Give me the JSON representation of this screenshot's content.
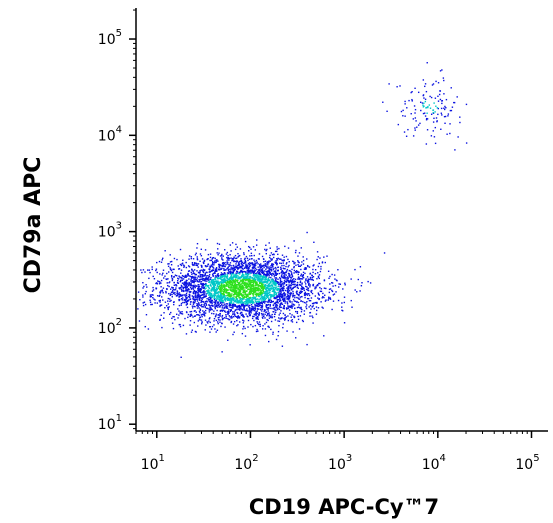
{
  "chart_data": {
    "type": "scatter",
    "title": "",
    "xlabel": "CD19 APC-Cy™7",
    "ylabel": "CD79a APC",
    "x_scale": "log",
    "y_scale": "log",
    "xlim": [
      6,
      150000
    ],
    "ylim": [
      8.5,
      210000
    ],
    "x_ticks": [
      {
        "value": 10,
        "base": "10",
        "exp": "1"
      },
      {
        "value": 100,
        "base": "10",
        "exp": "2"
      },
      {
        "value": 1000,
        "base": "10",
        "exp": "3"
      },
      {
        "value": 10000,
        "base": "10",
        "exp": "4"
      },
      {
        "value": 100000,
        "base": "10",
        "exp": "5"
      }
    ],
    "y_ticks": [
      {
        "value": 10,
        "base": "10",
        "exp": "1"
      },
      {
        "value": 100,
        "base": "10",
        "exp": "2"
      },
      {
        "value": 1000,
        "base": "10",
        "exp": "3"
      },
      {
        "value": 10000,
        "base": "10",
        "exp": "4"
      },
      {
        "value": 100000,
        "base": "10",
        "exp": "5"
      }
    ],
    "populations": [
      {
        "x_center": 80,
        "y_center": 260,
        "x_spread_decades": 0.42,
        "y_spread_decades": 0.17,
        "events": 4200
      },
      {
        "x_center": 8000,
        "y_center": 20000,
        "x_spread_decades": 0.17,
        "y_spread_decades": 0.15,
        "events": 140
      }
    ],
    "grid": false,
    "legend": "none",
    "colors": {
      "low_density": "#0a12e0",
      "mid_density": "#00c8c8",
      "high_density": "#2ee01e",
      "axis": "#000000"
    }
  }
}
